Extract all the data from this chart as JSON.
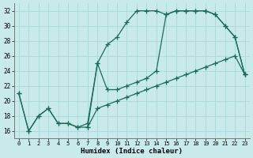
{
  "xlabel": "Humidex (Indice chaleur)",
  "bg_color": "#c8eaea",
  "grid_color": "#a8d8d8",
  "line_color": "#1a6b5a",
  "xlim": [
    -0.5,
    23.5
  ],
  "ylim": [
    15,
    33
  ],
  "yticks": [
    16,
    18,
    20,
    22,
    24,
    26,
    28,
    30,
    32
  ],
  "xticks": [
    0,
    1,
    2,
    3,
    4,
    5,
    6,
    7,
    8,
    9,
    10,
    11,
    12,
    13,
    14,
    15,
    16,
    17,
    18,
    19,
    20,
    21,
    22,
    23
  ],
  "line1_x": [
    0,
    1,
    2,
    3,
    4,
    5,
    6,
    7,
    8,
    9,
    10,
    11,
    12,
    13,
    14,
    15,
    16,
    17,
    18,
    19,
    20,
    21,
    22,
    23
  ],
  "line1_y": [
    21,
    16,
    18,
    19,
    17,
    17,
    16.5,
    16.5,
    19,
    19.5,
    20,
    20.5,
    21,
    21.5,
    22,
    22.5,
    23,
    23.5,
    24,
    24.5,
    25,
    25.5,
    26,
    23.5
  ],
  "line2_x": [
    0,
    1,
    2,
    3,
    4,
    5,
    6,
    7,
    8,
    9,
    10,
    11,
    12,
    13,
    14,
    15,
    16,
    17,
    18,
    19,
    20,
    21,
    22,
    23
  ],
  "line2_y": [
    21,
    16,
    18,
    19,
    17,
    17,
    16.5,
    17,
    25,
    27.5,
    28.5,
    30.5,
    32,
    32,
    32,
    31.5,
    32,
    32,
    32,
    32,
    31.5,
    30,
    28.5,
    23.5
  ],
  "line3_x": [
    7,
    8,
    9,
    10,
    11,
    12,
    13,
    14,
    15,
    16,
    17,
    18,
    19,
    20,
    21,
    22,
    23
  ],
  "line3_y": [
    16.5,
    25,
    21.5,
    21.5,
    22,
    22.5,
    23,
    24,
    31.5,
    32,
    32,
    32,
    32,
    31.5,
    30,
    28.5,
    23.5
  ]
}
